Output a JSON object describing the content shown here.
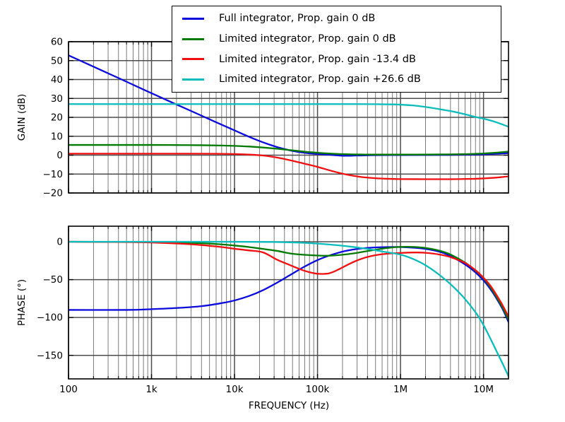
{
  "figure": {
    "background": "#ffffff"
  },
  "style": {
    "grid_major": "#4d4d4d",
    "grid_minor": "#6e6e6e",
    "axes_edge": "#000000",
    "tick_color": "#000000",
    "series_colors": {
      "blue": "#0b0bdd",
      "green": "#007a00",
      "red": "#f01010",
      "cyan": "#0abcbc"
    }
  },
  "legend": {
    "items": [
      {
        "id": "blue",
        "label": "Full integrator, Prop. gain 0 dB",
        "color": "#0b0bdd"
      },
      {
        "id": "green",
        "label": "Limited integrator, Prop. gain 0 dB",
        "color": "#007a00"
      },
      {
        "id": "red",
        "label": "Limited integrator, Prop. gain -13.4 dB",
        "color": "#f01010"
      },
      {
        "id": "cyan",
        "label": "Limited integrator, Prop. gain +26.6 dB",
        "color": "#0abcbc"
      }
    ]
  },
  "chart_data": [
    {
      "id": "gain",
      "type": "line",
      "xscale": "log",
      "grid": "both",
      "legend_position": "upper center",
      "xlim": [
        100,
        20000000
      ],
      "ylim": [
        -20,
        60
      ],
      "ylabel": "GAIN (dB)",
      "show_x_labels": false,
      "yticks": [
        {
          "v": 60,
          "label": "60"
        },
        {
          "v": 50,
          "label": "50"
        },
        {
          "v": 40,
          "label": "40"
        },
        {
          "v": 30,
          "label": "30"
        },
        {
          "v": 20,
          "label": "20"
        },
        {
          "v": 10,
          "label": "10"
        },
        {
          "v": 0,
          "label": "0"
        },
        {
          "v": -10,
          "label": "−10"
        },
        {
          "v": -20,
          "label": "−20"
        }
      ],
      "xticks": [
        {
          "v": 100,
          "label": "100"
        },
        {
          "v": 1000,
          "label": "1k"
        },
        {
          "v": 10000,
          "label": "10k"
        },
        {
          "v": 100000,
          "label": "100k"
        },
        {
          "v": 1000000,
          "label": "1M"
        },
        {
          "v": 10000000,
          "label": "10M"
        }
      ],
      "series": [
        {
          "id": "blue",
          "name": "Full integrator, Prop. gain 0 dB",
          "color": "#0b0bdd",
          "points": [
            [
              100,
              52.8
            ],
            [
              200,
              46.8
            ],
            [
              400,
              40.8
            ],
            [
              800,
              34.7
            ],
            [
              1600,
              28.7
            ],
            [
              3200,
              22.8
            ],
            [
              6000,
              17.4
            ],
            [
              10000,
              13.1
            ],
            [
              15000,
              9.7
            ],
            [
              22000,
              6.8
            ],
            [
              33000,
              4.2
            ],
            [
              47000,
              2.5
            ],
            [
              68000,
              1.3
            ],
            [
              100000,
              0.6
            ],
            [
              150000,
              0.1
            ],
            [
              200000,
              -0.3
            ],
            [
              300000,
              -0.2
            ],
            [
              500000,
              0.0
            ],
            [
              1000000,
              0.05
            ],
            [
              2000000,
              0.1
            ],
            [
              4000000,
              0.15
            ],
            [
              7000000,
              0.3
            ],
            [
              10000000,
              0.45
            ],
            [
              14000000,
              0.7
            ],
            [
              20000000,
              1.1
            ]
          ]
        },
        {
          "id": "green",
          "name": "Limited integrator, Prop. gain 0 dB",
          "color": "#007a00",
          "points": [
            [
              100,
              5.4
            ],
            [
              1000,
              5.4
            ],
            [
              2000,
              5.35
            ],
            [
              4000,
              5.25
            ],
            [
              7000,
              5.1
            ],
            [
              10000,
              4.9
            ],
            [
              15000,
              4.55
            ],
            [
              22000,
              4.05
            ],
            [
              33000,
              3.35
            ],
            [
              47000,
              2.65
            ],
            [
              68000,
              1.9
            ],
            [
              100000,
              1.25
            ],
            [
              150000,
              0.8
            ],
            [
              220000,
              0.5
            ],
            [
              330000,
              0.35
            ],
            [
              500000,
              0.3
            ],
            [
              1000000,
              0.3
            ],
            [
              2000000,
              0.32
            ],
            [
              4000000,
              0.42
            ],
            [
              6000000,
              0.55
            ],
            [
              8000000,
              0.72
            ],
            [
              10000000,
              0.9
            ],
            [
              14000000,
              1.3
            ],
            [
              20000000,
              1.9
            ]
          ]
        },
        {
          "id": "red",
          "name": "Limited integrator, Prop. gain -13.4 dB",
          "color": "#f01010",
          "points": [
            [
              100,
              0.8
            ],
            [
              1000,
              0.8
            ],
            [
              3000,
              0.8
            ],
            [
              6000,
              0.75
            ],
            [
              10000,
              0.6
            ],
            [
              15000,
              0.3
            ],
            [
              22000,
              -0.2
            ],
            [
              33000,
              -1.3
            ],
            [
              47000,
              -2.7
            ],
            [
              68000,
              -4.4
            ],
            [
              100000,
              -6.2
            ],
            [
              150000,
              -8.4
            ],
            [
              220000,
              -10.2
            ],
            [
              330000,
              -11.5
            ],
            [
              500000,
              -12.2
            ],
            [
              700000,
              -12.5
            ],
            [
              1000000,
              -12.65
            ],
            [
              2000000,
              -12.7
            ],
            [
              4000000,
              -12.7
            ],
            [
              6000000,
              -12.6
            ],
            [
              8000000,
              -12.5
            ],
            [
              10000000,
              -12.3
            ],
            [
              14000000,
              -11.9
            ],
            [
              20000000,
              -11.2
            ]
          ]
        },
        {
          "id": "cyan",
          "name": "Limited integrator, Prop. gain +26.6 dB",
          "color": "#0abcbc",
          "points": [
            [
              100,
              27.0
            ],
            [
              10000,
              27.0
            ],
            [
              100000,
              27.0
            ],
            [
              300000,
              27.0
            ],
            [
              500000,
              26.95
            ],
            [
              800000,
              26.85
            ],
            [
              1000000,
              26.7
            ],
            [
              1400000,
              26.3
            ],
            [
              2000000,
              25.5
            ],
            [
              2800000,
              24.5
            ],
            [
              4000000,
              23.3
            ],
            [
              5600000,
              21.9
            ],
            [
              8000000,
              20.2
            ],
            [
              10000000,
              19.3
            ],
            [
              12000000,
              18.4
            ],
            [
              14000000,
              17.5
            ],
            [
              17000000,
              16.2
            ],
            [
              20000000,
              15.0
            ]
          ]
        }
      ]
    },
    {
      "id": "phase",
      "type": "line",
      "xscale": "log",
      "grid": "both",
      "xlim": [
        100,
        20000000
      ],
      "ylim": [
        -181,
        20.5
      ],
      "ylabel": "PHASE (°)",
      "xlabel": "FREQUENCY (Hz)",
      "show_x_labels": true,
      "yticks": [
        {
          "v": 0,
          "label": "0"
        },
        {
          "v": -50,
          "label": "−50"
        },
        {
          "v": -100,
          "label": "−100"
        },
        {
          "v": -150,
          "label": "−150"
        }
      ],
      "xticks": [
        {
          "v": 100,
          "label": "100"
        },
        {
          "v": 1000,
          "label": "1k"
        },
        {
          "v": 10000,
          "label": "10k"
        },
        {
          "v": 100000,
          "label": "100k"
        },
        {
          "v": 1000000,
          "label": "1M"
        },
        {
          "v": 10000000,
          "label": "10M"
        }
      ],
      "series": [
        {
          "id": "blue",
          "name": "Full integrator, Prop. gain 0 dB",
          "color": "#0b0bdd",
          "points": [
            [
              100,
              -90
            ],
            [
              500,
              -90
            ],
            [
              1000,
              -89
            ],
            [
              2000,
              -87.5
            ],
            [
              4000,
              -85
            ],
            [
              7000,
              -81
            ],
            [
              10000,
              -77.5
            ],
            [
              15000,
              -71.6
            ],
            [
              22000,
              -64
            ],
            [
              33000,
              -53.7
            ],
            [
              47000,
              -43.8
            ],
            [
              68000,
              -33.5
            ],
            [
              100000,
              -24.2
            ],
            [
              150000,
              -17
            ],
            [
              220000,
              -12
            ],
            [
              330000,
              -9
            ],
            [
              500000,
              -7.5
            ],
            [
              700000,
              -7
            ],
            [
              1000000,
              -7
            ],
            [
              1400000,
              -7.8
            ],
            [
              2000000,
              -9.5
            ],
            [
              3000000,
              -13.5
            ],
            [
              4000000,
              -19
            ],
            [
              6000000,
              -30
            ],
            [
              8000000,
              -40.5
            ],
            [
              10000000,
              -51
            ],
            [
              12000000,
              -62
            ],
            [
              14000000,
              -73
            ],
            [
              17000000,
              -89
            ],
            [
              20000000,
              -106
            ]
          ]
        },
        {
          "id": "green",
          "name": "Limited integrator, Prop. gain 0 dB",
          "color": "#007a00",
          "points": [
            [
              100,
              0
            ],
            [
              1000,
              -0.5
            ],
            [
              2000,
              -1
            ],
            [
              4000,
              -2
            ],
            [
              7000,
              -3.5
            ],
            [
              10000,
              -5
            ],
            [
              15000,
              -7
            ],
            [
              22000,
              -9.5
            ],
            [
              33000,
              -12.2
            ],
            [
              47000,
              -15.5
            ],
            [
              68000,
              -17.2
            ],
            [
              100000,
              -18.2
            ],
            [
              140000,
              -18.4
            ],
            [
              200000,
              -17.2
            ],
            [
              280000,
              -15.2
            ],
            [
              400000,
              -12.3
            ],
            [
              550000,
              -9.8
            ],
            [
              750000,
              -7.8
            ],
            [
              1000000,
              -6.8
            ],
            [
              1400000,
              -6.8
            ],
            [
              2000000,
              -8.2
            ],
            [
              3000000,
              -12
            ],
            [
              4000000,
              -16.8
            ],
            [
              6000000,
              -27.5
            ],
            [
              8000000,
              -38
            ],
            [
              10000000,
              -48
            ],
            [
              12000000,
              -59.5
            ],
            [
              14000000,
              -71
            ],
            [
              17000000,
              -87
            ],
            [
              20000000,
              -103
            ]
          ]
        },
        {
          "id": "red",
          "name": "Limited integrator, Prop. gain -13.4 dB",
          "color": "#f01010",
          "points": [
            [
              100,
              0
            ],
            [
              500,
              -0.5
            ],
            [
              1000,
              -1
            ],
            [
              2000,
              -2.3
            ],
            [
              4000,
              -4.4
            ],
            [
              7000,
              -7
            ],
            [
              10000,
              -9.3
            ],
            [
              15000,
              -11.5
            ],
            [
              22000,
              -14
            ],
            [
              33000,
              -24
            ],
            [
              47000,
              -31
            ],
            [
              68000,
              -38
            ],
            [
              90000,
              -41.5
            ],
            [
              110000,
              -42.5
            ],
            [
              140000,
              -41.5
            ],
            [
              180000,
              -36.5
            ],
            [
              250000,
              -28.5
            ],
            [
              350000,
              -22
            ],
            [
              500000,
              -17.8
            ],
            [
              700000,
              -15.8
            ],
            [
              1000000,
              -14.8
            ],
            [
              1500000,
              -14.2
            ],
            [
              2000000,
              -14.6
            ],
            [
              3000000,
              -17
            ],
            [
              4000000,
              -20.3
            ],
            [
              6000000,
              -28
            ],
            [
              8000000,
              -37.5
            ],
            [
              10000000,
              -47.5
            ],
            [
              12000000,
              -57.5
            ],
            [
              14000000,
              -68.5
            ],
            [
              17000000,
              -84
            ],
            [
              20000000,
              -99
            ]
          ]
        },
        {
          "id": "cyan",
          "name": "Limited integrator, Prop. gain +26.6 dB",
          "color": "#0abcbc",
          "points": [
            [
              100,
              0
            ],
            [
              10000,
              -0.1
            ],
            [
              30000,
              -0.4
            ],
            [
              60000,
              -1.2
            ],
            [
              100000,
              -2.5
            ],
            [
              150000,
              -4
            ],
            [
              250000,
              -6.5
            ],
            [
              400000,
              -9.5
            ],
            [
              600000,
              -12.8
            ],
            [
              1000000,
              -17
            ],
            [
              1400000,
              -22.5
            ],
            [
              2000000,
              -31
            ],
            [
              2800000,
              -42
            ],
            [
              4000000,
              -56
            ],
            [
              5600000,
              -72
            ],
            [
              8000000,
              -93
            ],
            [
              10000000,
              -110
            ],
            [
              12000000,
              -127
            ],
            [
              14000000,
              -142
            ],
            [
              17000000,
              -161
            ],
            [
              20000000,
              -177.5
            ]
          ]
        }
      ]
    }
  ]
}
